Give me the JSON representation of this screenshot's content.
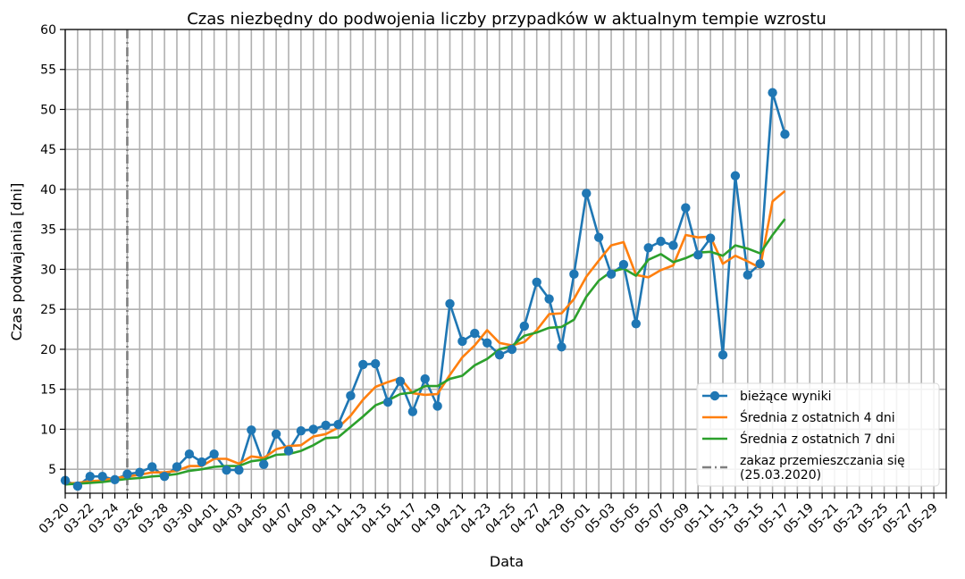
{
  "chart_data": {
    "type": "line",
    "title": "Czas niezbędny do podwojenia liczby przypadków w aktualnym tempie wzrostu",
    "xlabel": "Data",
    "ylabel": "Czas podwajania [dni]",
    "x_range": [
      "03-20",
      "05-30"
    ],
    "ylim": [
      2,
      60
    ],
    "grid": true,
    "legend_position": "lower right",
    "x_tick_labels": [
      "03-20",
      "03-22",
      "03-24",
      "03-26",
      "03-28",
      "03-30",
      "04-01",
      "04-03",
      "04-05",
      "04-07",
      "04-09",
      "04-11",
      "04-13",
      "04-15",
      "04-17",
      "04-19",
      "04-21",
      "04-23",
      "04-25",
      "04-27",
      "04-29",
      "05-01",
      "05-03",
      "05-05",
      "05-07",
      "05-09",
      "05-11",
      "05-13",
      "05-15",
      "05-17",
      "05-19",
      "05-21",
      "05-23",
      "05-25",
      "05-27",
      "05-29"
    ],
    "y_ticks": [
      5,
      10,
      15,
      20,
      25,
      30,
      35,
      40,
      45,
      50,
      55,
      60
    ],
    "dates": [
      "03-20",
      "03-21",
      "03-22",
      "03-23",
      "03-24",
      "03-25",
      "03-26",
      "03-27",
      "03-28",
      "03-29",
      "03-30",
      "03-31",
      "04-01",
      "04-02",
      "04-03",
      "04-04",
      "04-05",
      "04-06",
      "04-07",
      "04-08",
      "04-09",
      "04-10",
      "04-11",
      "04-12",
      "04-13",
      "04-14",
      "04-15",
      "04-16",
      "04-17",
      "04-18",
      "04-19",
      "04-20",
      "04-21",
      "04-22",
      "04-23",
      "04-24",
      "04-25",
      "04-26",
      "04-27",
      "04-28",
      "04-29",
      "04-30",
      "05-01",
      "05-02",
      "05-03",
      "05-04",
      "05-05",
      "05-06",
      "05-07",
      "05-08",
      "05-09",
      "05-10",
      "05-11",
      "05-12",
      "05-13",
      "05-14",
      "05-15",
      "05-16",
      "05-17"
    ],
    "series": [
      {
        "name": "bieżące wyniki",
        "color": "#1f77b4",
        "markers": true,
        "values": [
          3.6,
          2.9,
          4.1,
          4.1,
          3.7,
          4.4,
          4.6,
          5.3,
          4.1,
          5.3,
          6.9,
          5.9,
          6.9,
          4.9,
          4.9,
          9.9,
          5.6,
          9.4,
          7.3,
          9.8,
          10.0,
          10.5,
          10.6,
          14.2,
          18.1,
          18.2,
          13.4,
          16.0,
          12.2,
          16.3,
          12.9,
          25.7,
          21.0,
          22.0,
          20.8,
          19.3,
          20.0,
          22.9,
          28.4,
          26.3,
          20.3,
          29.4,
          39.5,
          34.0,
          29.4,
          30.6,
          23.2,
          32.7,
          33.5,
          33.0,
          37.7,
          31.8,
          33.9,
          19.3,
          41.7,
          29.3,
          30.7,
          52.1,
          46.9
        ]
      },
      {
        "name": "Średnia z ostatnich 4 dni",
        "color": "#ff7f0e",
        "markers": false,
        "values": [
          3.2,
          3.3,
          3.5,
          3.6,
          3.9,
          4.1,
          4.3,
          4.6,
          4.6,
          4.8,
          5.4,
          5.4,
          6.3,
          6.3,
          5.7,
          6.6,
          6.4,
          7.5,
          7.9,
          8.0,
          9.1,
          9.4,
          10.2,
          11.7,
          13.7,
          15.3,
          15.9,
          16.4,
          14.5,
          14.3,
          14.4,
          16.8,
          19.0,
          20.5,
          22.4,
          20.8,
          20.5,
          20.9,
          22.4,
          24.4,
          24.5,
          26.3,
          29.1,
          31.1,
          33.0,
          33.4,
          29.3,
          29.0,
          29.9,
          30.5,
          34.3,
          34.0,
          34.1,
          30.7,
          31.7,
          31.0,
          30.2,
          38.5,
          39.8
        ]
      },
      {
        "name": "Średnia z ostatnich 7 dni",
        "color": "#2ca02c",
        "markers": false,
        "values": [
          3.1,
          3.2,
          3.3,
          3.4,
          3.6,
          3.8,
          3.9,
          4.1,
          4.2,
          4.4,
          4.8,
          5.0,
          5.3,
          5.4,
          5.4,
          6.0,
          6.2,
          6.8,
          6.9,
          7.3,
          8.0,
          8.9,
          9.0,
          10.3,
          11.6,
          13.0,
          13.6,
          14.4,
          14.6,
          15.4,
          15.4,
          16.3,
          16.7,
          18.0,
          18.8,
          20.0,
          20.4,
          21.7,
          22.1,
          22.7,
          22.8,
          23.7,
          26.6,
          28.6,
          29.7,
          30.1,
          29.2,
          31.2,
          31.9,
          30.9,
          31.4,
          32.1,
          32.2,
          31.7,
          33.0,
          32.6,
          32.0,
          34.3,
          36.3
        ]
      }
    ],
    "annotations": [
      {
        "type": "vline",
        "x": "03-25",
        "style": "dash-dot",
        "color": "#7f7f7f",
        "label": "zakaz przemieszczania się\n(25.03.2020)"
      }
    ]
  }
}
